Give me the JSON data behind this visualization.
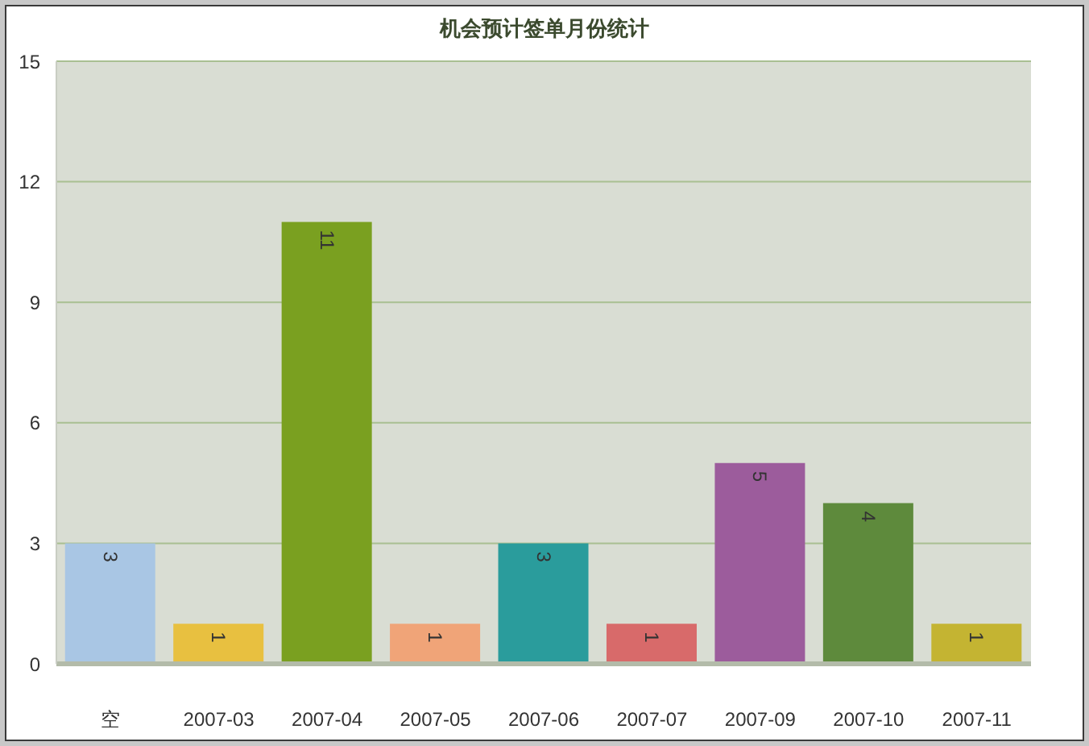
{
  "chart_data": {
    "type": "bar",
    "title": "机会预计签单月份统计",
    "categories": [
      "空",
      "2007-03",
      "2007-04",
      "2007-05",
      "2007-06",
      "2007-07",
      "2007-09",
      "2007-10",
      "2007-11"
    ],
    "values": [
      3,
      1,
      11,
      1,
      3,
      1,
      5,
      4,
      1
    ],
    "colors": [
      "#a9c6e4",
      "#e8c040",
      "#7aa020",
      "#f0a478",
      "#2a9c9c",
      "#d86a6a",
      "#9c5c9c",
      "#5e8a3c",
      "#c4b432"
    ],
    "ylim": [
      0,
      15
    ],
    "yticks": [
      0,
      3,
      6,
      9,
      12,
      15
    ],
    "grid": "y",
    "data_labels": true
  }
}
